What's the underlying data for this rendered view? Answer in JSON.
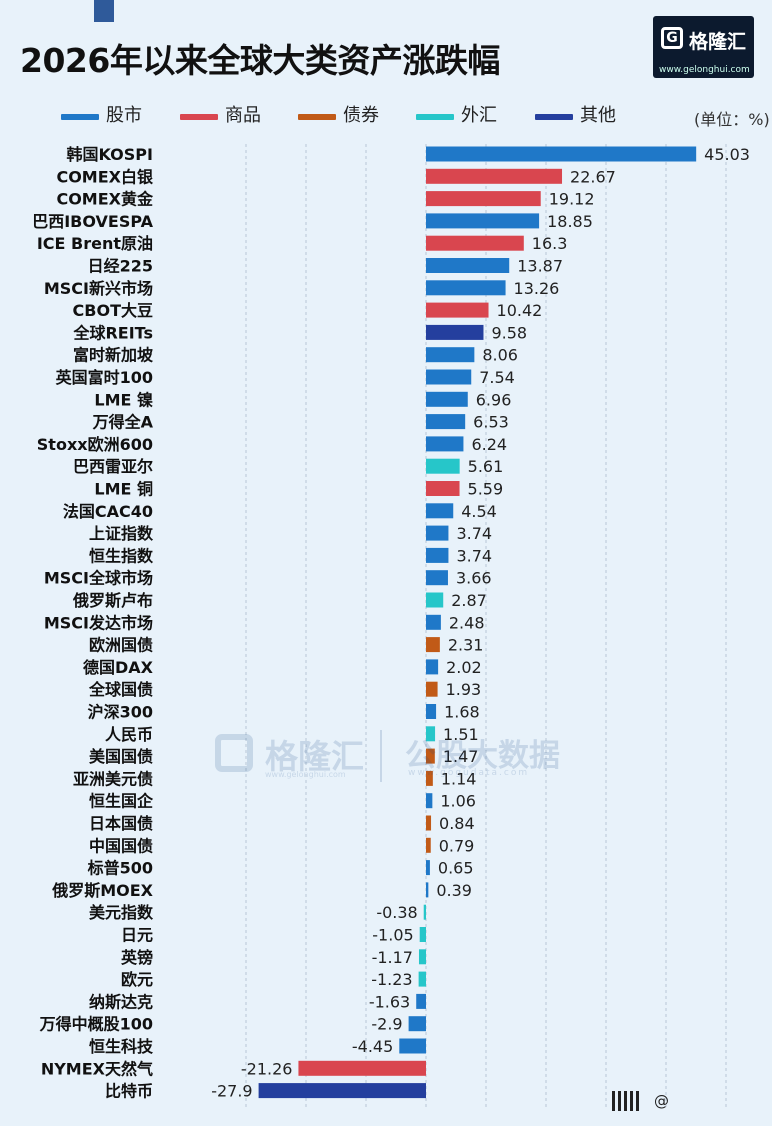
{
  "title": "2026年以来全球大类资产涨跌幅",
  "logo": {
    "name": "格隆汇",
    "url": "www.gelonghui.com"
  },
  "legend": [
    {
      "label": "股市",
      "color": "#1f78c8"
    },
    {
      "label": "商品",
      "color": "#d9464f"
    },
    {
      "label": "债券",
      "color": "#c15a17"
    },
    {
      "label": "外汇",
      "color": "#26c6c9"
    },
    {
      "label": "其他",
      "color": "#243f9e"
    }
  ],
  "unit": "(单位：%)",
  "watermark": {
    "name": "格隆汇",
    "sub": "www.gelonghui.com",
    "name2": "公股大数据",
    "sub2": "www.gogudata.com"
  },
  "credit": "@",
  "chart_data": {
    "type": "bar",
    "orientation": "horizontal",
    "title": "2026年以来全球大类资产涨跌幅",
    "unit": "%",
    "grid": true,
    "xlim": [
      -35,
      52
    ],
    "categories": [
      "韩国KOSPI",
      "COMEX白银",
      "COMEX黄金",
      "巴西IBOVESPA",
      "ICE Brent原油",
      "日经225",
      "MSCI新兴市场",
      "CBOT大豆",
      "全球REITs",
      "富时新加坡",
      "英国富时100",
      "LME 镍",
      "万得全A",
      "Stoxx欧洲600",
      "巴西雷亚尔",
      "LME 铜",
      "法国CAC40",
      "上证指数",
      "恒生指数",
      "MSCI全球市场",
      "俄罗斯卢布",
      "MSCI发达市场",
      "欧洲国债",
      "德国DAX",
      "全球国债",
      "沪深300",
      "人民币",
      "美国国债",
      "亚洲美元债",
      "恒生国企",
      "日本国债",
      "中国国债",
      "标普500",
      "俄罗斯MOEX",
      "美元指数",
      "日元",
      "英镑",
      "欧元",
      "纳斯达克",
      "万得中概股100",
      "恒生科技",
      "NYMEX天然气",
      "比特币"
    ],
    "values": [
      45.03,
      22.67,
      19.12,
      18.85,
      16.3,
      13.87,
      13.26,
      10.42,
      9.58,
      8.06,
      7.54,
      6.96,
      6.53,
      6.24,
      5.61,
      5.59,
      4.54,
      3.74,
      3.74,
      3.66,
      2.87,
      2.48,
      2.31,
      2.02,
      1.93,
      1.68,
      1.51,
      1.47,
      1.14,
      1.06,
      0.84,
      0.79,
      0.65,
      0.39,
      -0.38,
      -1.05,
      -1.17,
      -1.23,
      -1.63,
      -2.9,
      -4.45,
      -21.26,
      -27.9
    ],
    "value_labels": [
      "45.03",
      "22.67",
      "19.12",
      "18.85",
      "16.3",
      "13.87",
      "13.26",
      "10.42",
      "9.58",
      "8.06",
      "7.54",
      "6.96",
      "6.53",
      "6.24",
      "5.61",
      "5.59",
      "4.54",
      "3.74",
      "3.74",
      "3.66",
      "2.87",
      "2.48",
      "2.31",
      "2.02",
      "1.93",
      "1.68",
      "1.51",
      "1.47",
      "1.14",
      "1.06",
      "0.84",
      "0.79",
      "0.65",
      "0.39",
      "-0.38",
      "-1.05",
      "-1.17",
      "-1.23",
      "-1.63",
      "-2.9",
      "-4.45",
      "-21.26",
      "-27.9"
    ],
    "asset_class": [
      "股市",
      "商品",
      "商品",
      "股市",
      "商品",
      "股市",
      "股市",
      "商品",
      "其他",
      "股市",
      "股市",
      "股市",
      "股市",
      "股市",
      "外汇",
      "商品",
      "股市",
      "股市",
      "股市",
      "股市",
      "外汇",
      "股市",
      "债券",
      "股市",
      "债券",
      "股市",
      "外汇",
      "债券",
      "债券",
      "股市",
      "债券",
      "债券",
      "股市",
      "股市",
      "外汇",
      "外汇",
      "外汇",
      "外汇",
      "股市",
      "股市",
      "股市",
      "商品",
      "其他"
    ]
  }
}
